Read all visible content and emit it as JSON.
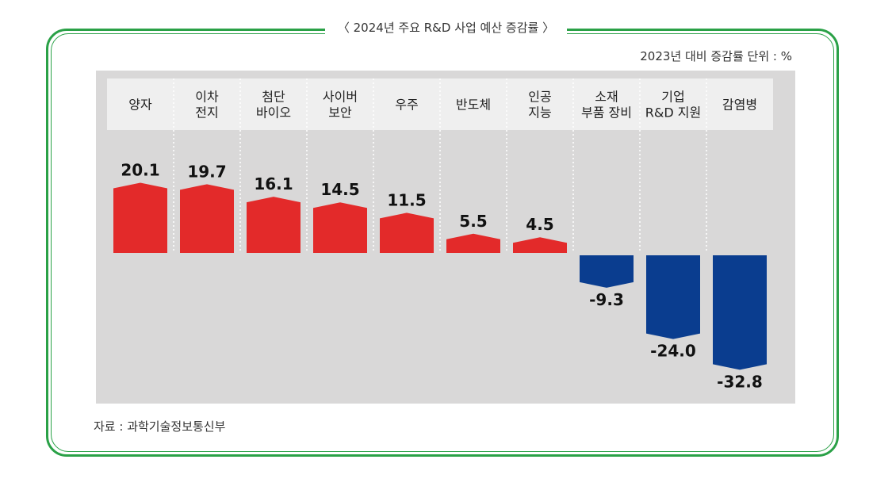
{
  "title": "〈 2024년 주요 R&D 사업 예산 증감률 〉",
  "unit_note": "2023년 대비 증감률 단위 : %",
  "source": "자료 : 과학기술정보통신부",
  "colors": {
    "positive": "#e32a2a",
    "negative": "#0a3d8f",
    "frame": "#2aa147",
    "panel": "#d9d8d8",
    "header": "#efefef"
  },
  "chart_data": {
    "type": "bar",
    "categories": [
      [
        "양자"
      ],
      [
        "이차",
        "전지"
      ],
      [
        "첨단",
        "바이오"
      ],
      [
        "사이버",
        "보안"
      ],
      [
        "우주"
      ],
      [
        "반도체"
      ],
      [
        "인공",
        "지능"
      ],
      [
        "소재",
        "부품 장비"
      ],
      [
        "기업",
        "R&D 지원"
      ],
      [
        "감염병"
      ]
    ],
    "values": [
      20.1,
      19.7,
      16.1,
      14.5,
      11.5,
      5.5,
      4.5,
      -9.3,
      -24.0,
      -32.8
    ],
    "value_labels": [
      "20.1",
      "19.7",
      "16.1",
      "14.5",
      "11.5",
      "5.5",
      "4.5",
      "-9.3",
      "-24.0",
      "-32.8"
    ],
    "xlabel": "",
    "ylabel": "",
    "ylim": [
      -32.8,
      20.1
    ],
    "grid": false
  }
}
